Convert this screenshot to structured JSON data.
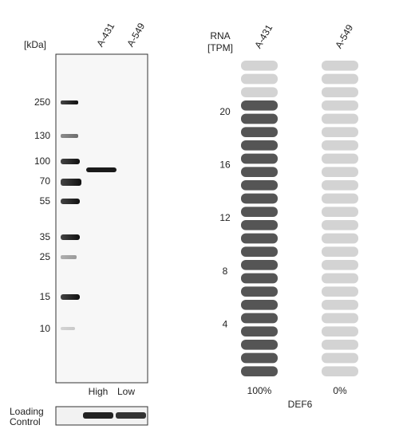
{
  "blot": {
    "unit": "[kDa]",
    "lanes": [
      "A-431",
      "A-549"
    ],
    "markers": [
      "250",
      "130",
      "100",
      "70",
      "55",
      "35",
      "25",
      "15",
      "10"
    ],
    "levels": [
      "High",
      "Low"
    ],
    "loading_control": [
      "Loading",
      "Control"
    ]
  },
  "rna": {
    "type": "pill",
    "axis_label": [
      "RNA",
      "[TPM]"
    ],
    "ylim": [
      0,
      24
    ],
    "yticks": [
      4,
      8,
      12,
      16,
      20
    ],
    "series": [
      {
        "name": "A-431",
        "values": [
          21
        ],
        "color": "#555555",
        "share": {
          "value": 100,
          "label": "100%"
        }
      },
      {
        "name": "A-549",
        "values": [
          0
        ],
        "color": "#555555",
        "share": {
          "value": 0,
          "label": "0%"
        }
      }
    ],
    "empty_color": "#d3d3d3",
    "gene": "DEF6"
  }
}
